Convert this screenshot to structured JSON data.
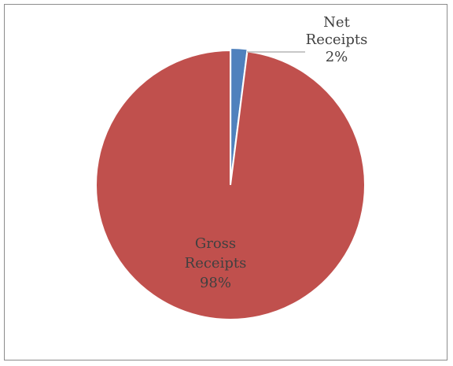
{
  "chart_data": {
    "type": "pie",
    "title": "",
    "start_angle_deg": 0,
    "direction": "clockwise",
    "colors": {
      "border": "#8c8c8c",
      "slice_separator": "#ffffff",
      "leader_line": "#a6a6a6",
      "label_text": "#404040"
    },
    "slices": [
      {
        "label_lines": [
          "Net",
          "Receipts",
          "2%"
        ],
        "percent": 2,
        "color": "#4f81bd",
        "label_placement": "outside"
      },
      {
        "label_lines": [
          "Gross",
          "Receipts",
          "98%"
        ],
        "percent": 98,
        "color": "#c0504d",
        "label_placement": "inside"
      }
    ]
  }
}
